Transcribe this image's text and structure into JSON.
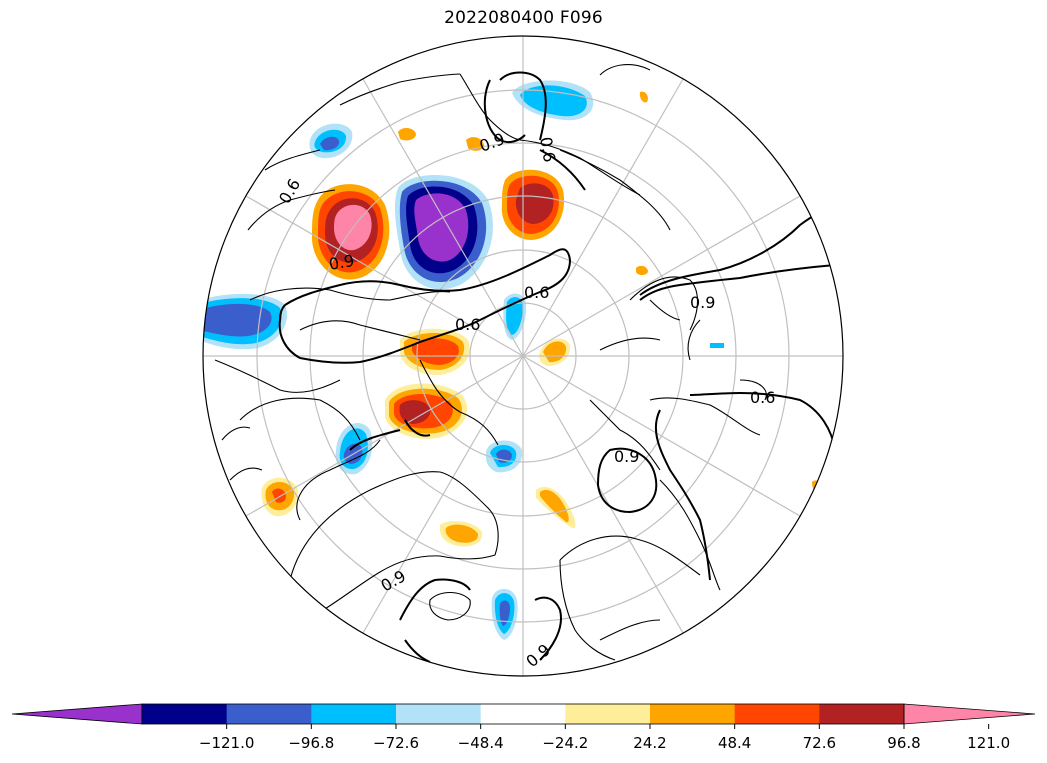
{
  "title": "2022080400 F096",
  "contour_labels": {
    "c1": "0.6",
    "c2": "0.6",
    "c3": "0.6",
    "c4": "0.6",
    "c5": "0.6",
    "c6": "0.9",
    "c7": "0.9",
    "c8": "0.9",
    "c9": "0.9",
    "c10": "0.9",
    "c11": "0.9"
  },
  "colorbar": {
    "ticks": [
      "−121.0",
      "−96.8",
      "−72.6",
      "−48.4",
      "−24.2",
      "24.2",
      "48.4",
      "72.6",
      "96.8",
      "121.0"
    ],
    "colors": [
      "#9932cc",
      "#00008b",
      "#3a5fcd",
      "#00bfff",
      "#b2e2f7",
      "#ffffff",
      "#ffee99",
      "#ffa500",
      "#ff4500",
      "#b22222",
      "#ff85a8"
    ]
  },
  "colors": {
    "grid": "#c0c0c0",
    "coast": "#000000"
  }
}
